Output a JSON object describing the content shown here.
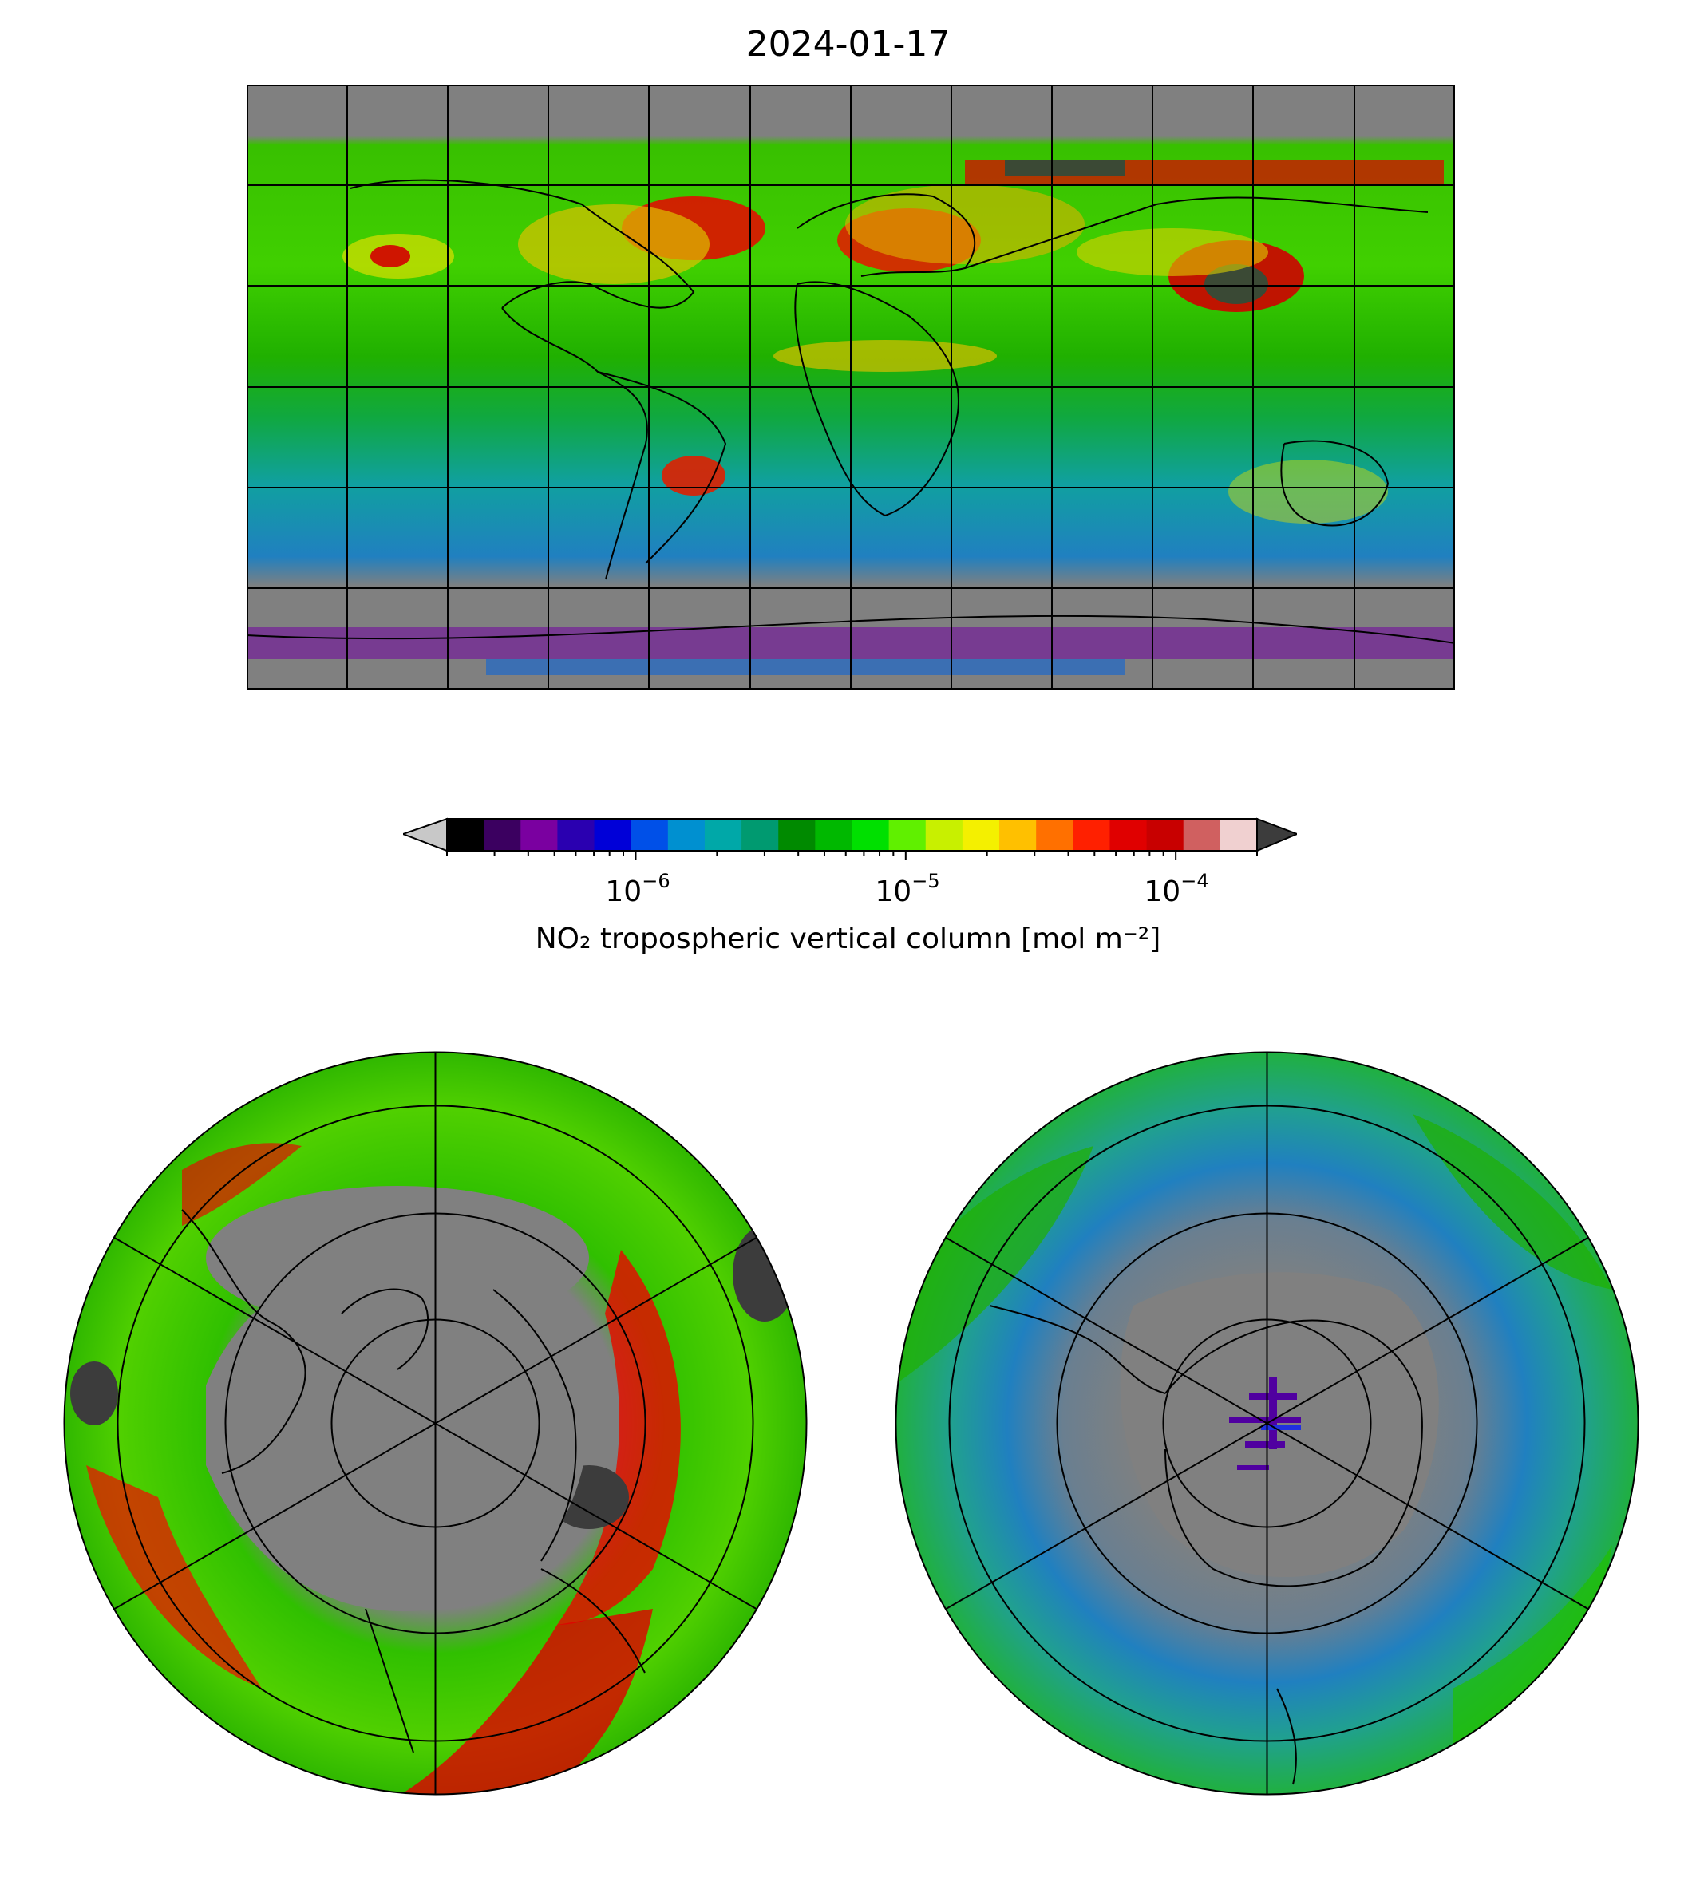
{
  "figure": {
    "title": "2024-01-17"
  },
  "colorbar": {
    "label": "NO₂ tropospheric vertical column [mol m⁻²]",
    "scale": "log",
    "range": [
      2e-07,
      0.0002
    ],
    "extend": "both",
    "under_color": "#c8c8c8",
    "over_color": "#3c3c3c",
    "ticks": [
      {
        "base": "10",
        "exponent": "−6",
        "value": 1e-06
      },
      {
        "base": "10",
        "exponent": "−5",
        "value": 1e-05
      },
      {
        "base": "10",
        "exponent": "−4",
        "value": 0.0001
      }
    ],
    "colors": [
      "#000000",
      "#3b0060",
      "#7a00a0",
      "#2a00b0",
      "#0000d8",
      "#0050e8",
      "#0090d0",
      "#00a8a8",
      "#009a70",
      "#008a00",
      "#00b800",
      "#00e000",
      "#60f000",
      "#c8f000",
      "#f4f000",
      "#ffc000",
      "#ff7000",
      "#ff2000",
      "#e00000",
      "#c80000",
      "#d06060",
      "#f0d0d0"
    ]
  },
  "maps": {
    "world": {
      "projection": "Plate Carree",
      "missing_color": "#808080"
    },
    "north_polar": {
      "projection": "North Polar Stereographic",
      "missing_color": "#808080"
    },
    "south_polar": {
      "projection": "South Polar Stereographic",
      "missing_color": "#808080"
    }
  }
}
